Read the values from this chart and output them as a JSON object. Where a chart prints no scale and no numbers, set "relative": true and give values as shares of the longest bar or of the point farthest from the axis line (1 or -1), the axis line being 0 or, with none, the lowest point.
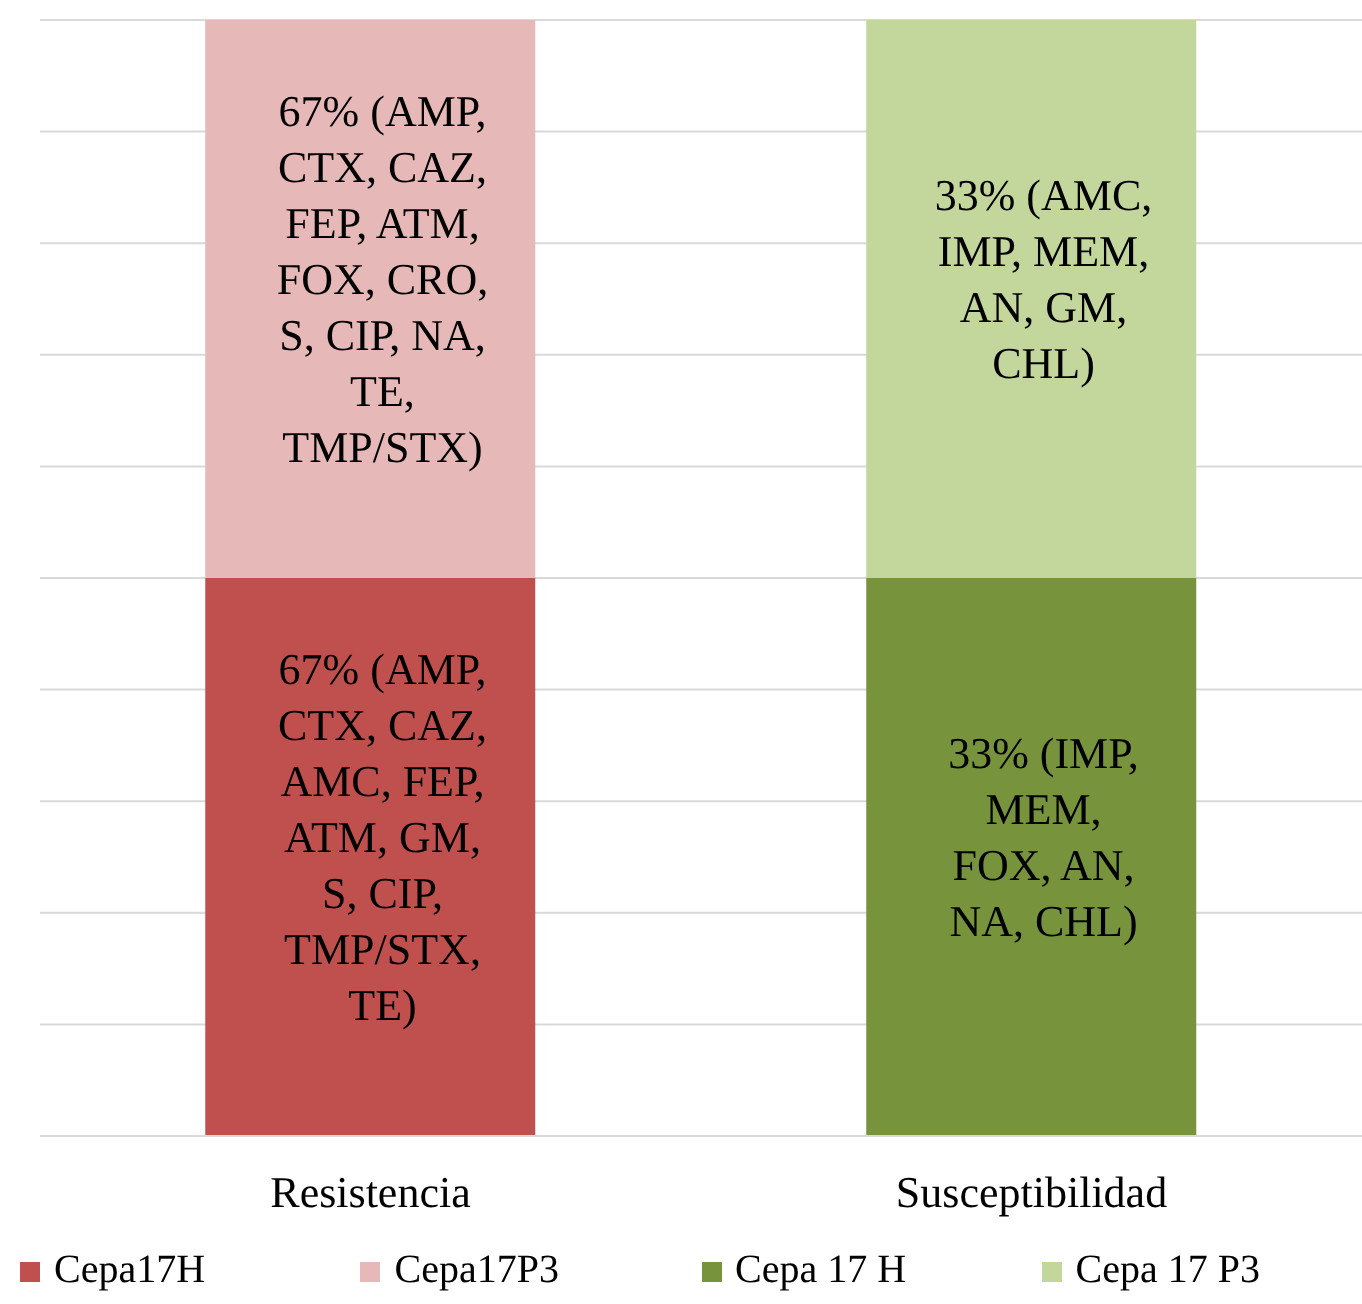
{
  "chart_data": {
    "type": "bar",
    "stacked": true,
    "relative": true,
    "grid": "y",
    "legend": "bottom",
    "categories": [
      "Resistencia",
      "Susceptibilidad"
    ],
    "series": [
      {
        "name": "Cepa17H",
        "color": "#c0504d",
        "values": [
          0.5,
          null
        ]
      },
      {
        "name": "Cepa17P3",
        "color": "#e6b9b8",
        "values": [
          0.5,
          null
        ]
      },
      {
        "name": "Cepa 17 H",
        "color": "#77933c",
        "values": [
          null,
          0.5
        ]
      },
      {
        "name": "Cepa 17 P3",
        "color": "#c3d69b",
        "values": [
          null,
          0.5
        ]
      }
    ],
    "annotations": [
      "67% (AMP, CTX, CAZ, AMC, FEP, ATM, GM, S, CIP, TMP/STX, TE)",
      "67% (AMP, CTX, CAZ, FEP, ATM, FOX, CRO, S, CIP, NA, TE, TMP/STX)",
      "33% (IMP, MEM, FOX, AN, NA, CHL)",
      "33% (AMC, IMP, MEM, AN, GM, CHL)"
    ]
  }
}
